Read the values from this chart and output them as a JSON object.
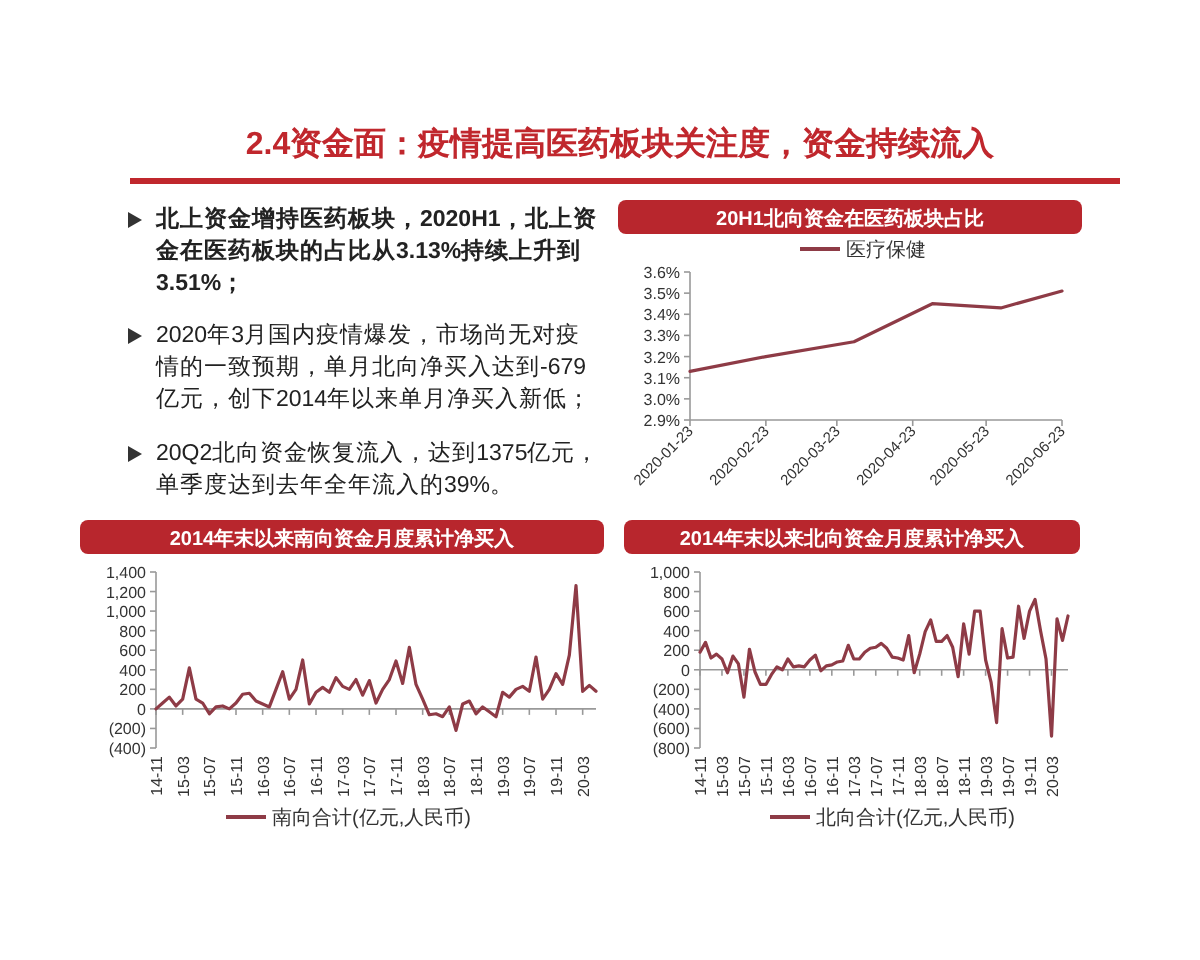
{
  "chart_data": [
    {
      "type": "other",
      "title": "2.4资金面：疫情提高医药板块关注度，资金持续流入",
      "annotations": [
        "北上资金增持医药板块，2020H1，北上资金在医药板块的占比从3.13%持续上升到3.51%；",
        "2020年3月国内疫情爆发，市场尚无对疫情的一致预期，单月北向净买入达到-679亿元，创下2014年以来单月净买入新低；",
        "20Q2北向资金恢复流入，达到1375亿元，单季度达到去年全年流入的39%。"
      ]
    },
    {
      "type": "line",
      "title": "20H1北向资金在医药板块占比",
      "legend": "top",
      "x": [
        "2020-01-23",
        "2020-02-23",
        "2020-03-30",
        "2020-05-01",
        "2020-05-29",
        "2020-06-23"
      ],
      "xlim": [
        "2020-01-23",
        "2020-06-23"
      ],
      "xticks": [
        "2020-01-23",
        "2020-02-23",
        "2020-03-23",
        "2020-04-23",
        "2020-05-23",
        "2020-06-23"
      ],
      "ylim": [
        2.9,
        3.6
      ],
      "yticks": [
        {
          "value": 2.9,
          "label": "2.9%"
        },
        {
          "value": 3.0,
          "label": "3.0%"
        },
        {
          "value": 3.1,
          "label": "3.1%"
        },
        {
          "value": 3.2,
          "label": "3.2%"
        },
        {
          "value": 3.3,
          "label": "3.3%"
        },
        {
          "value": 3.4,
          "label": "3.4%"
        },
        {
          "value": 3.5,
          "label": "3.5%"
        },
        {
          "value": 3.6,
          "label": "3.6%"
        }
      ],
      "series": [
        {
          "name": "医疗保健",
          "color": "#8e3b46",
          "values": [
            3.13,
            3.2,
            3.27,
            3.45,
            3.43,
            3.51
          ]
        }
      ]
    },
    {
      "type": "line",
      "title": "2014年末以来南向资金月度累计净买入",
      "legend": "bottom",
      "categories": [
        "14-11",
        null,
        null,
        null,
        "15-03",
        null,
        null,
        null,
        "15-07",
        null,
        null,
        null,
        "15-11",
        null,
        null,
        null,
        "16-03",
        null,
        null,
        null,
        "16-07",
        null,
        null,
        null,
        "16-11",
        null,
        null,
        null,
        "17-03",
        null,
        null,
        null,
        "17-07",
        null,
        null,
        null,
        "17-11",
        null,
        null,
        null,
        "18-03",
        null,
        null,
        null,
        "18-07",
        null,
        null,
        null,
        "18-11",
        null,
        null,
        null,
        "19-03",
        null,
        null,
        null,
        "19-07",
        null,
        null,
        null,
        "19-11",
        null,
        null,
        null,
        "20-03",
        null,
        null
      ],
      "ylim": [
        -400,
        1400
      ],
      "yticks": [
        {
          "value": -400,
          "label": "(400)"
        },
        {
          "value": -200,
          "label": "(200)"
        },
        0,
        200,
        400,
        600,
        800,
        {
          "value": 1000,
          "label": "1,000"
        },
        {
          "value": 1200,
          "label": "1,200"
        },
        {
          "value": 1400,
          "label": "1,400"
        }
      ],
      "series": [
        {
          "name": "南向合计(亿元,人民币)",
          "color": "#8e3b46",
          "values": [
            0,
            60,
            120,
            30,
            100,
            420,
            100,
            60,
            -50,
            20,
            30,
            0,
            60,
            150,
            160,
            80,
            50,
            20,
            200,
            380,
            100,
            200,
            500,
            50,
            170,
            220,
            170,
            320,
            230,
            200,
            300,
            140,
            290,
            60,
            200,
            300,
            490,
            260,
            630,
            250,
            100,
            -60,
            -50,
            -80,
            20,
            -220,
            50,
            80,
            -50,
            20,
            -30,
            -80,
            170,
            120,
            200,
            230,
            180,
            530,
            100,
            200,
            360,
            250,
            550,
            1260,
            180,
            240,
            180
          ]
        }
      ]
    },
    {
      "type": "line",
      "title": "2014年末以来北向资金月度累计净买入",
      "legend": "bottom",
      "categories": [
        "14-11",
        null,
        null,
        null,
        "15-03",
        null,
        null,
        null,
        "15-07",
        null,
        null,
        null,
        "15-11",
        null,
        null,
        null,
        "16-03",
        null,
        null,
        null,
        "16-07",
        null,
        null,
        null,
        "16-11",
        null,
        null,
        null,
        "17-03",
        null,
        null,
        null,
        "17-07",
        null,
        null,
        null,
        "17-11",
        null,
        null,
        null,
        "18-03",
        null,
        null,
        null,
        "18-07",
        null,
        null,
        null,
        "18-11",
        null,
        null,
        null,
        "19-03",
        null,
        null,
        null,
        "19-07",
        null,
        null,
        null,
        "19-11",
        null,
        null,
        null,
        "20-03",
        null,
        null,
        null
      ],
      "ylim": [
        -800,
        1000
      ],
      "yticks": [
        {
          "value": -800,
          "label": "(800)"
        },
        {
          "value": -600,
          "label": "(600)"
        },
        {
          "value": -400,
          "label": "(400)"
        },
        {
          "value": -200,
          "label": "(200)"
        },
        0,
        200,
        400,
        600,
        800,
        {
          "value": 1000,
          "label": "1,000"
        }
      ],
      "series": [
        {
          "name": "北向合计(亿元,人民币)",
          "color": "#8e3b46",
          "values": [
            180,
            280,
            120,
            160,
            110,
            -30,
            140,
            60,
            -280,
            210,
            -20,
            -150,
            -150,
            -50,
            30,
            0,
            110,
            30,
            40,
            30,
            100,
            150,
            -10,
            40,
            50,
            80,
            90,
            250,
            110,
            110,
            180,
            220,
            230,
            270,
            220,
            130,
            120,
            100,
            350,
            -30,
            160,
            390,
            510,
            290,
            290,
            350,
            230,
            -70,
            470,
            160,
            600,
            600,
            100,
            -130,
            -540,
            420,
            120,
            130,
            650,
            320,
            600,
            720,
            400,
            110,
            -680,
            520,
            300,
            550
          ]
        }
      ]
    }
  ]
}
